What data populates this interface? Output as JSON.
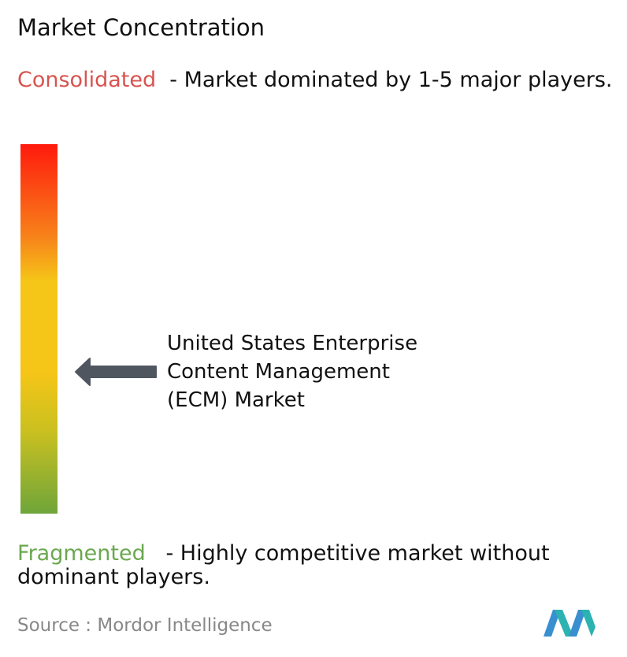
{
  "title": "Market Concentration",
  "consolidated": {
    "label": "Consolidated",
    "description": "- Market dominated by 1-5 major players."
  },
  "market": {
    "lines": [
      "United States Enterprise",
      "Content Management",
      "(ECM) Market"
    ]
  },
  "fragmented": {
    "label": "Fragmented",
    "description": "- Highly competitive market without dominant players."
  },
  "source": {
    "label": "Source :",
    "name": "Mordor Intelligence"
  }
}
